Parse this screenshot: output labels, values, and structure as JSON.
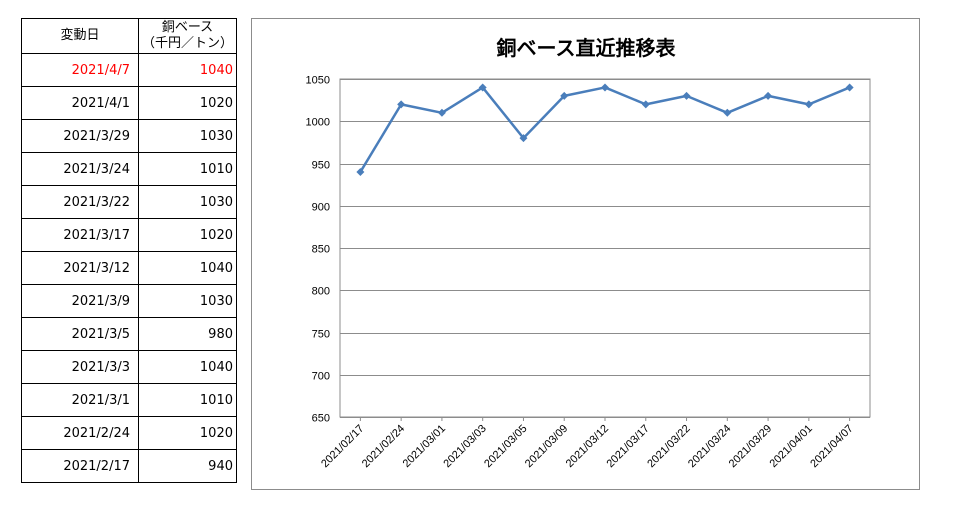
{
  "table": {
    "headers": {
      "date": "変動日",
      "price_line1": "銅ベース",
      "price_line2": "（千円／トン）"
    },
    "rows": [
      {
        "date": "2021/4/7",
        "price": "1040"
      },
      {
        "date": "2021/4/1",
        "price": "1020"
      },
      {
        "date": "2021/3/29",
        "price": "1030"
      },
      {
        "date": "2021/3/24",
        "price": "1010"
      },
      {
        "date": "2021/3/22",
        "price": "1030"
      },
      {
        "date": "2021/3/17",
        "price": "1020"
      },
      {
        "date": "2021/3/12",
        "price": "1040"
      },
      {
        "date": "2021/3/9",
        "price": "1030"
      },
      {
        "date": "2021/3/5",
        "price": "980"
      },
      {
        "date": "2021/3/3",
        "price": "1040"
      },
      {
        "date": "2021/3/1",
        "price": "1010"
      },
      {
        "date": "2021/2/24",
        "price": "1020"
      },
      {
        "date": "2021/2/17",
        "price": "940"
      }
    ],
    "highlight_color": "#ff0000"
  },
  "chart_data": {
    "type": "line",
    "title": "銅ベース直近推移表",
    "xlabel": "",
    "ylabel": "",
    "categories": [
      "2021/02/17",
      "2021/02/24",
      "2021/03/01",
      "2021/03/03",
      "2021/03/05",
      "2021/03/09",
      "2021/03/12",
      "2021/03/17",
      "2021/03/22",
      "2021/03/24",
      "2021/03/29",
      "2021/04/01",
      "2021/04/07"
    ],
    "series": [
      {
        "values": [
          940,
          1020,
          1010,
          1040,
          980,
          1030,
          1040,
          1020,
          1030,
          1010,
          1030,
          1020,
          1040
        ],
        "color": "#4a7ebb"
      }
    ],
    "ylim": [
      650,
      1050
    ],
    "yticks": [
      650,
      700,
      750,
      800,
      850,
      900,
      950,
      1000,
      1050
    ],
    "grid": true,
    "legend": "none",
    "marker": "diamond"
  }
}
